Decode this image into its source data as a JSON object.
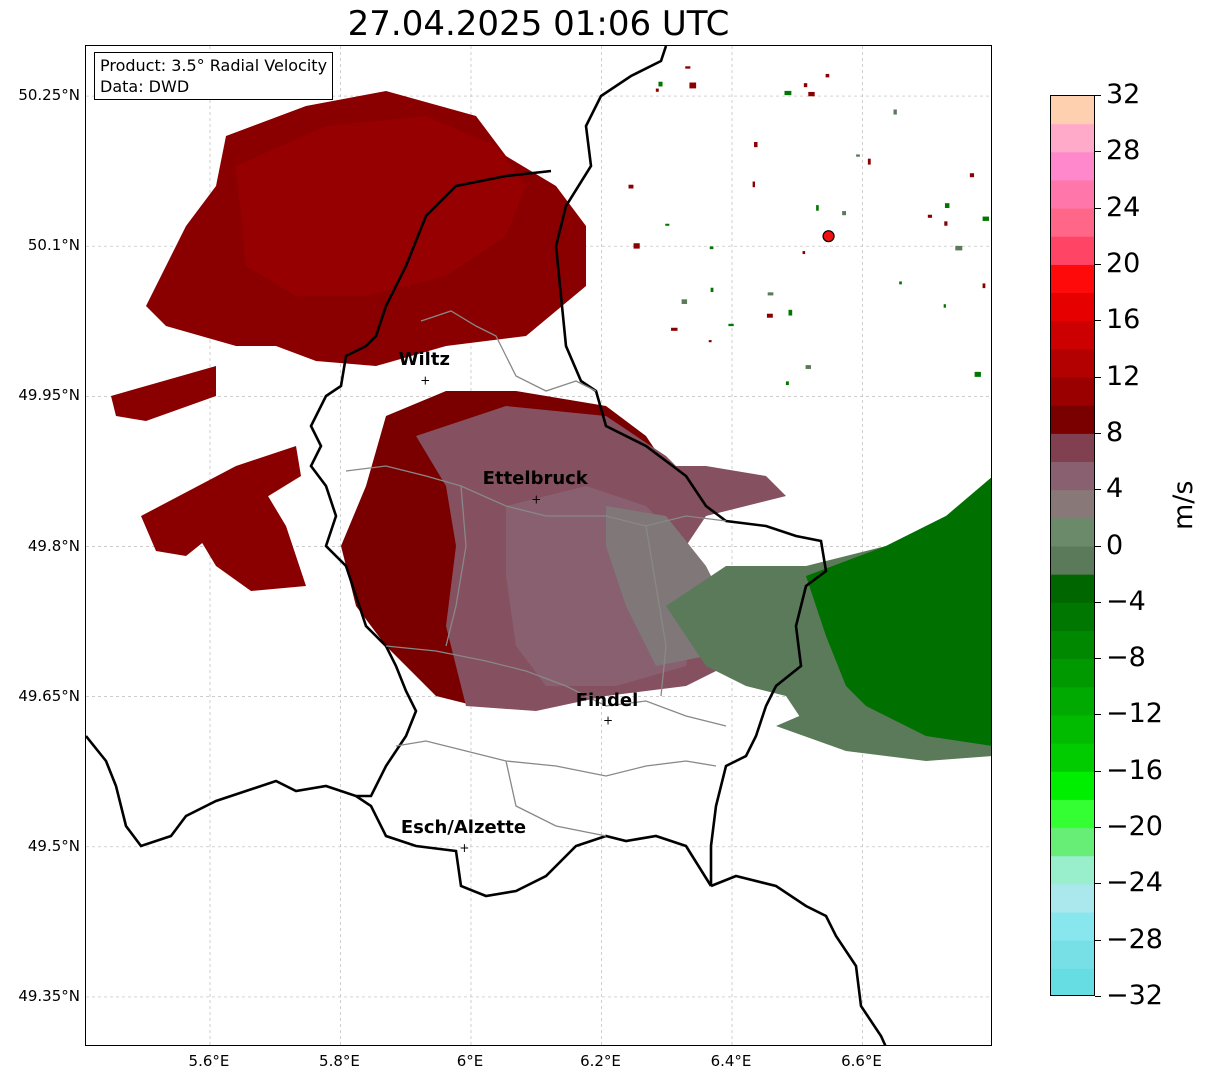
{
  "title": "27.04.2025 01:06 UTC",
  "info_box": {
    "product": "Product: 3.5° Radial Velocity",
    "data": "Data: DWD"
  },
  "axes": {
    "lat_labels": [
      "50.25°N",
      "50.1°N",
      "49.95°N",
      "49.8°N",
      "49.65°N",
      "49.5°N",
      "49.35°N"
    ],
    "lon_labels": [
      "5.6°E",
      "5.8°E",
      "6°E",
      "6.2°E",
      "6.4°E",
      "6.6°E"
    ],
    "lat_values": [
      50.25,
      50.1,
      49.95,
      49.8,
      49.65,
      49.5,
      49.35
    ],
    "lon_values": [
      5.6,
      5.8,
      6.0,
      6.2,
      6.4,
      6.6
    ],
    "lon_range": [
      5.41,
      6.8
    ],
    "lat_range": [
      49.3,
      50.3
    ]
  },
  "cities": [
    {
      "name": "Wiltz",
      "lon": 5.93,
      "lat": 49.966
    },
    {
      "name": "Ettelbruck",
      "lon": 6.1,
      "lat": 49.847
    },
    {
      "name": "Findel",
      "lon": 6.21,
      "lat": 49.626
    },
    {
      "name": "Esch/Alzette",
      "lon": 5.99,
      "lat": 49.499
    }
  ],
  "radar_site": {
    "lon": 6.548,
    "lat": 50.11,
    "color": "#ee1111"
  },
  "colorbar": {
    "unit": "m/s",
    "min": -32,
    "max": 32,
    "tick_labels": [
      "32",
      "28",
      "24",
      "20",
      "16",
      "12",
      "8",
      "4",
      "0",
      "−4",
      "−8",
      "−12",
      "−16",
      "−20",
      "−24",
      "−28",
      "−32"
    ],
    "colors_top_to_bottom": [
      "#ffd0b0",
      "#ffaac8",
      "#ff88cc",
      "#ff77aa",
      "#ff6688",
      "#ff4466",
      "#ff0a0a",
      "#e60000",
      "#cc0000",
      "#b30000",
      "#9a0000",
      "#7a0000",
      "#804050",
      "#886070",
      "#887878",
      "#6a8a6a",
      "#5a7a5a",
      "#006600",
      "#007700",
      "#008800",
      "#009900",
      "#00aa00",
      "#00bb00",
      "#00cc00",
      "#00ee00",
      "#33ff33",
      "#66ee77",
      "#99eecc",
      "#aae8ee",
      "#88e6ee",
      "#77e0e6",
      "#66dde2"
    ]
  },
  "colors": {
    "receding_dark": "#8a0000",
    "receding_mid": "#7a0000",
    "mixed": "#855060",
    "near_zero_pink": "#886070",
    "near_zero_grey": "#808080",
    "approach_grey_green": "#5a7a5a",
    "approach_green": "#007000",
    "border": "#000000",
    "district": "#888888"
  }
}
